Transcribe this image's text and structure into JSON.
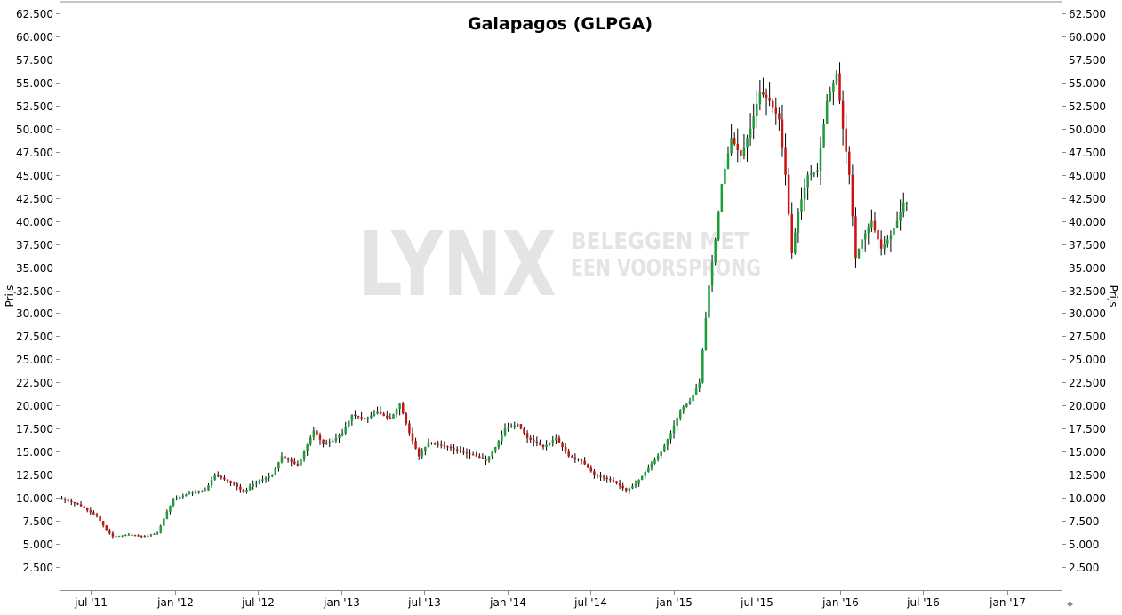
{
  "chart_data": {
    "type": "candlestick",
    "title": "Galapagos (GLPGA)",
    "ylabel_left": "Prijs",
    "ylabel_right": "Prijs",
    "ylim": [
      0,
      63750
    ],
    "y_ticks": [
      2500,
      5000,
      7500,
      10000,
      12500,
      15000,
      17500,
      20000,
      22500,
      25000,
      27500,
      30000,
      32500,
      35000,
      37500,
      40000,
      42500,
      45000,
      47500,
      50000,
      52500,
      55000,
      57500,
      60000,
      62500
    ],
    "y_tick_labels": [
      "2.500",
      "5.000",
      "7.500",
      "10.000",
      "12.500",
      "15.000",
      "17.500",
      "20.000",
      "22.500",
      "25.000",
      "27.500",
      "30.000",
      "32.500",
      "35.000",
      "37.500",
      "40.000",
      "42.500",
      "45.000",
      "47.500",
      "50.000",
      "52.500",
      "55.000",
      "57.500",
      "60.000",
      "62.500"
    ],
    "x_axis": {
      "start": "2011-04-25",
      "end": "2017-05-01",
      "ticks": [
        "2011-07-01",
        "2012-01-01",
        "2012-07-01",
        "2013-01-01",
        "2013-07-01",
        "2014-01-01",
        "2014-07-01",
        "2015-01-01",
        "2015-07-01",
        "2016-01-01",
        "2016-07-01",
        "2017-01-01"
      ],
      "tick_labels": [
        "jul '11",
        "jan '12",
        "jul '12",
        "jan '13",
        "jul '13",
        "jan '14",
        "jul '14",
        "jan '15",
        "jul '15",
        "jan '16",
        "jul '16",
        "jan '17"
      ]
    },
    "grid": false,
    "colors": {
      "up": "#1a9e3a",
      "down": "#cc1111",
      "wick": "#000000",
      "axis": "#8c8c8c"
    },
    "watermark": {
      "logo": "LYNX",
      "tagline_1": "BELEGGEN MET",
      "tagline_2": "EEN VOORSPRONG"
    },
    "frequency": "weekly",
    "anchors": [
      [
        "2011-04-25",
        10000
      ],
      [
        "2011-06-06",
        9300
      ],
      [
        "2011-07-18",
        8000
      ],
      [
        "2011-08-08",
        6500
      ],
      [
        "2011-08-22",
        5800
      ],
      [
        "2011-09-26",
        6000
      ],
      [
        "2011-10-31",
        5800
      ],
      [
        "2011-11-28",
        6200
      ],
      [
        "2011-12-19",
        8500
      ],
      [
        "2012-01-02",
        9800
      ],
      [
        "2012-02-06",
        10500
      ],
      [
        "2012-03-12",
        10800
      ],
      [
        "2012-04-02",
        12500
      ],
      [
        "2012-05-14",
        11500
      ],
      [
        "2012-06-04",
        10600
      ],
      [
        "2012-06-25",
        11500
      ],
      [
        "2012-08-06",
        12500
      ],
      [
        "2012-08-27",
        14500
      ],
      [
        "2012-10-01",
        13500
      ],
      [
        "2012-11-05",
        17300
      ],
      [
        "2012-11-26",
        15800
      ],
      [
        "2012-12-17",
        16200
      ],
      [
        "2013-01-07",
        17000
      ],
      [
        "2013-01-28",
        19000
      ],
      [
        "2013-02-25",
        18500
      ],
      [
        "2013-03-25",
        19300
      ],
      [
        "2013-04-22",
        18500
      ],
      [
        "2013-05-13",
        20200
      ],
      [
        "2013-06-03",
        17000
      ],
      [
        "2013-06-24",
        14500
      ],
      [
        "2013-07-15",
        16000
      ],
      [
        "2013-08-26",
        15500
      ],
      [
        "2013-09-23",
        15000
      ],
      [
        "2013-10-28",
        14500
      ],
      [
        "2013-11-18",
        14000
      ],
      [
        "2013-12-09",
        15500
      ],
      [
        "2013-12-30",
        17500
      ],
      [
        "2014-01-27",
        18000
      ],
      [
        "2014-02-17",
        16500
      ],
      [
        "2014-03-24",
        15500
      ],
      [
        "2014-04-21",
        16500
      ],
      [
        "2014-05-19",
        14500
      ],
      [
        "2014-06-16",
        14000
      ],
      [
        "2014-07-14",
        12500
      ],
      [
        "2014-08-25",
        11800
      ],
      [
        "2014-09-22",
        10800
      ],
      [
        "2014-10-13",
        11500
      ],
      [
        "2014-11-03",
        12800
      ],
      [
        "2014-12-08",
        15000
      ],
      [
        "2014-12-29",
        17000
      ],
      [
        "2015-01-19",
        19500
      ],
      [
        "2015-02-09",
        20500
      ],
      [
        "2015-03-02",
        22500
      ],
      [
        "2015-03-23",
        33000
      ],
      [
        "2015-04-06",
        38000
      ],
      [
        "2015-04-20",
        44000
      ],
      [
        "2015-05-11",
        49000
      ],
      [
        "2015-06-01",
        47000
      ],
      [
        "2015-06-22",
        50000
      ],
      [
        "2015-07-13",
        54000
      ],
      [
        "2015-08-03",
        53000
      ],
      [
        "2015-08-24",
        51000
      ],
      [
        "2015-09-07",
        45000
      ],
      [
        "2015-09-21",
        36500
      ],
      [
        "2015-10-05",
        41000
      ],
      [
        "2015-10-26",
        45000
      ],
      [
        "2015-11-16",
        45500
      ],
      [
        "2015-12-07",
        53000
      ],
      [
        "2015-12-28",
        56000
      ],
      [
        "2016-01-11",
        50000
      ],
      [
        "2016-01-25",
        45000
      ],
      [
        "2016-02-08",
        36000
      ],
      [
        "2016-02-22",
        38000
      ],
      [
        "2016-03-14",
        40000
      ],
      [
        "2016-04-04",
        37000
      ],
      [
        "2016-04-25",
        38500
      ],
      [
        "2016-05-09",
        40000
      ],
      [
        "2016-05-23",
        42000
      ]
    ]
  }
}
